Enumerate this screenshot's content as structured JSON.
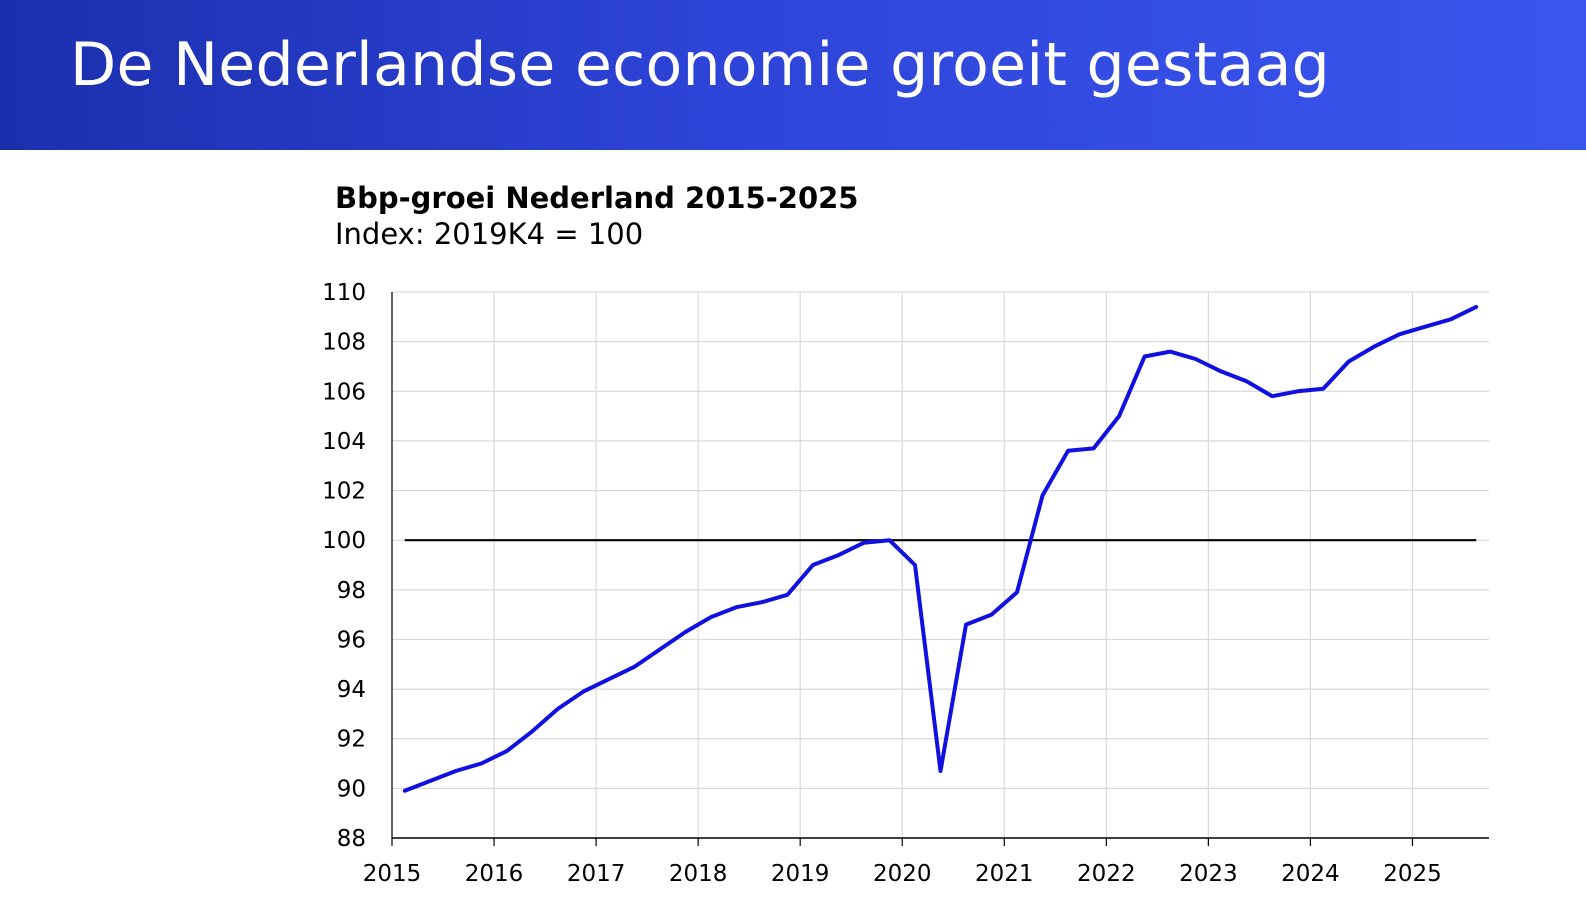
{
  "slide": {
    "title": "De Nederlandse economie groeit gestaag"
  },
  "colors": {
    "banner_start": "#1b2fae",
    "banner_end": "#3a55ee",
    "series_line": "#1010e0",
    "reference_line": "#000000",
    "grid": "#d9d9d9"
  },
  "chart_data": {
    "type": "line",
    "title": "Bbp-groei Nederland 2015-2025",
    "subtitle": "Index: 2019K4 = 100",
    "xlabel": "",
    "ylabel": "",
    "xlim": [
      2015,
      2025.75
    ],
    "ylim": [
      88,
      110
    ],
    "grid": true,
    "x_ticks": [
      2015,
      2016,
      2017,
      2018,
      2019,
      2020,
      2021,
      2022,
      2023,
      2024,
      2025
    ],
    "y_ticks": [
      88,
      90,
      92,
      94,
      96,
      98,
      100,
      102,
      104,
      106,
      108,
      110
    ],
    "reference_line": 100,
    "series": [
      {
        "quarters": [
          2015.125,
          2015.375,
          2015.625,
          2015.875,
          2016.125,
          2016.375,
          2016.625,
          2016.875,
          2017.125,
          2017.375,
          2017.625,
          2017.875,
          2018.125,
          2018.375,
          2018.625,
          2018.875,
          2019.125,
          2019.375,
          2019.625,
          2019.875,
          2020.125,
          2020.375,
          2020.625,
          2020.875,
          2021.125,
          2021.375,
          2021.625,
          2021.875,
          2022.125,
          2022.375,
          2022.625,
          2022.875,
          2023.125,
          2023.375,
          2023.625,
          2023.875,
          2024.125,
          2024.375,
          2024.625,
          2024.875,
          2025.125,
          2025.375,
          2025.625
        ],
        "values": [
          89.9,
          90.3,
          90.7,
          91.0,
          91.5,
          92.3,
          93.2,
          93.9,
          94.4,
          94.9,
          95.6,
          96.3,
          96.9,
          97.3,
          97.5,
          97.8,
          99.0,
          99.4,
          99.9,
          100.0,
          99.0,
          90.7,
          96.6,
          97.0,
          97.9,
          101.8,
          103.6,
          103.7,
          105.0,
          107.4,
          107.6,
          107.3,
          106.8,
          106.4,
          105.8,
          106.0,
          106.1,
          107.2,
          107.8,
          108.3,
          108.6,
          108.9,
          109.4
        ]
      }
    ]
  }
}
